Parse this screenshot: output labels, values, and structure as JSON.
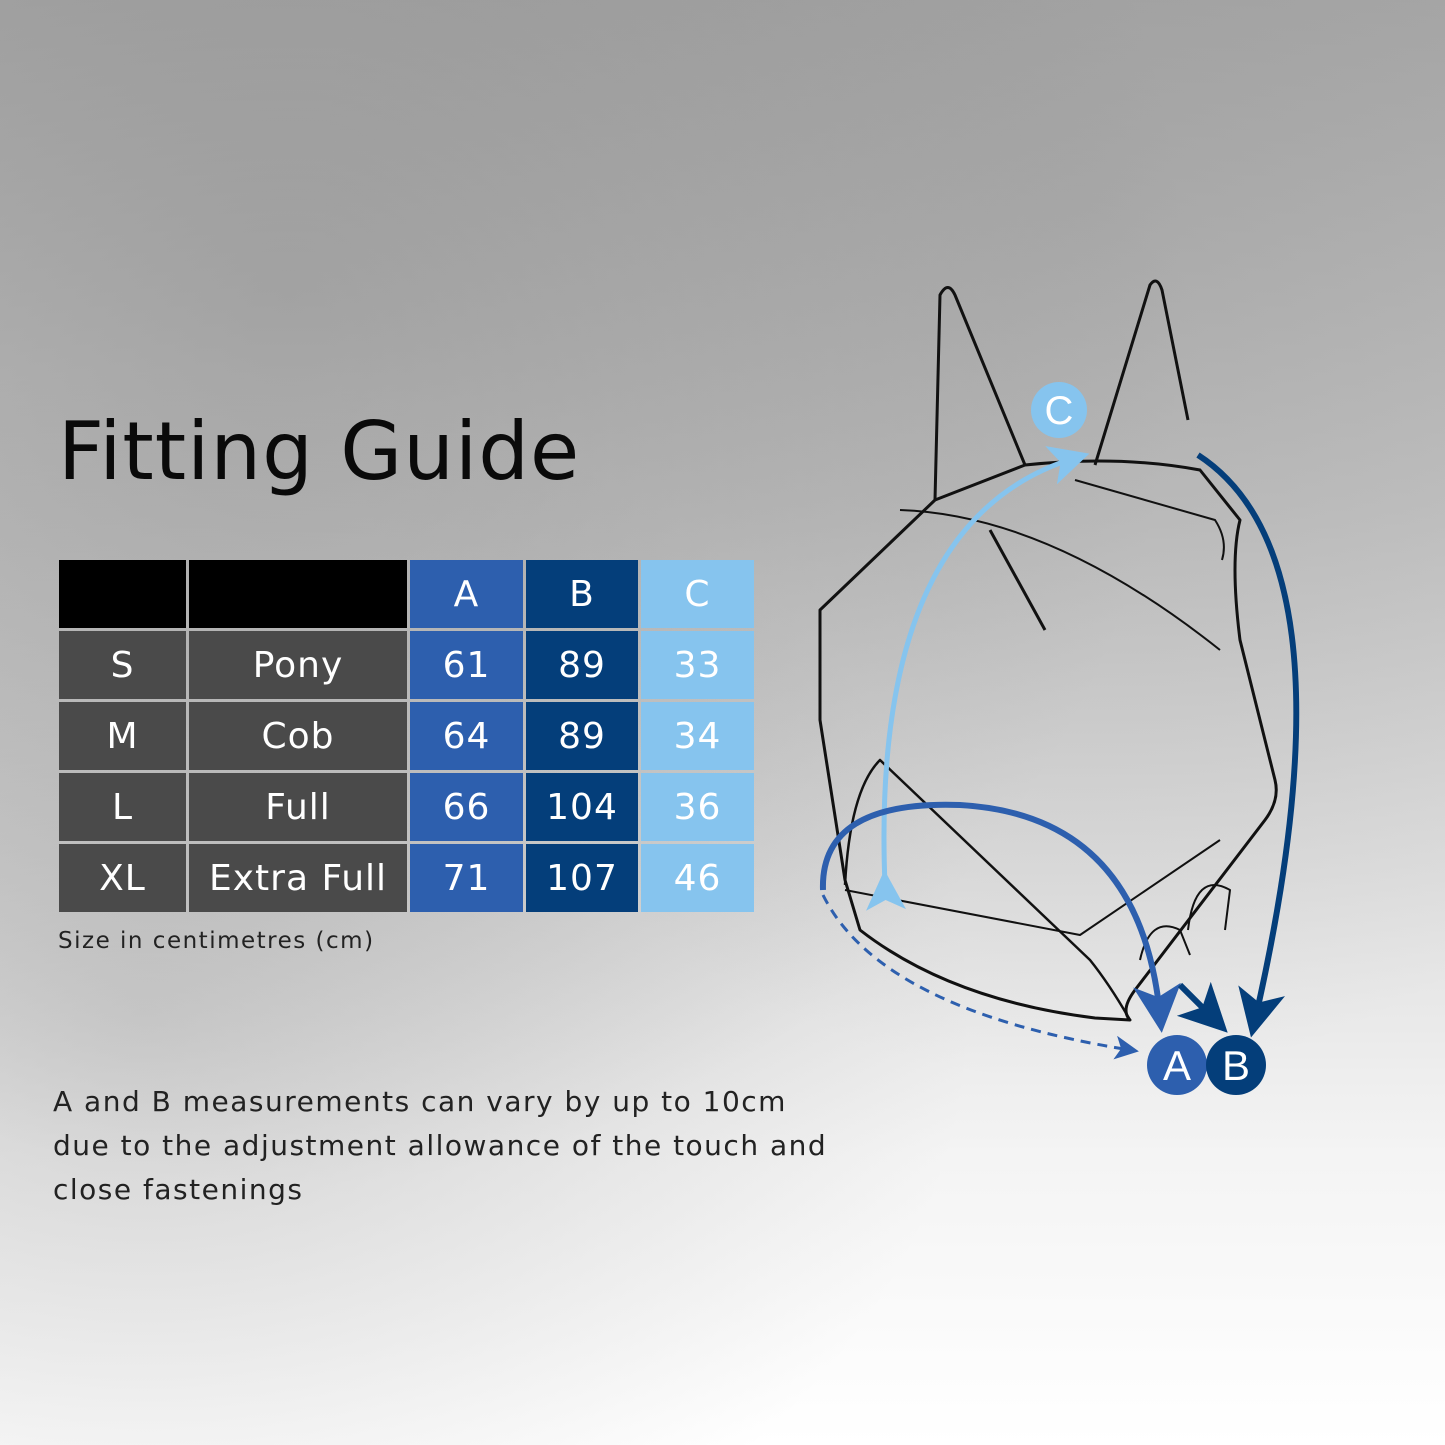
{
  "title": "Fitting Guide",
  "table": {
    "headers": [
      "",
      "",
      "A",
      "B",
      "C"
    ],
    "rows": [
      [
        "S",
        "Pony",
        "61",
        "89",
        "33"
      ],
      [
        "M",
        "Cob",
        "64",
        "89",
        "34"
      ],
      [
        "L",
        "Full",
        "66",
        "104",
        "36"
      ],
      [
        "XL",
        "Extra Full",
        "71",
        "107",
        "46"
      ]
    ]
  },
  "unit_note": "Size in centimetres (cm)",
  "footnote": "A and B measurements can vary by up to 10cm due to the adjustment allowance of the touch and close fastenings",
  "diagram": {
    "labels": {
      "a": "A",
      "b": "B",
      "c": "C"
    }
  },
  "colors": {
    "a": "#2d5fae",
    "b": "#043e7a",
    "c": "#86c4ee",
    "size_cells": "#4a4a4a",
    "header": "#000000"
  }
}
